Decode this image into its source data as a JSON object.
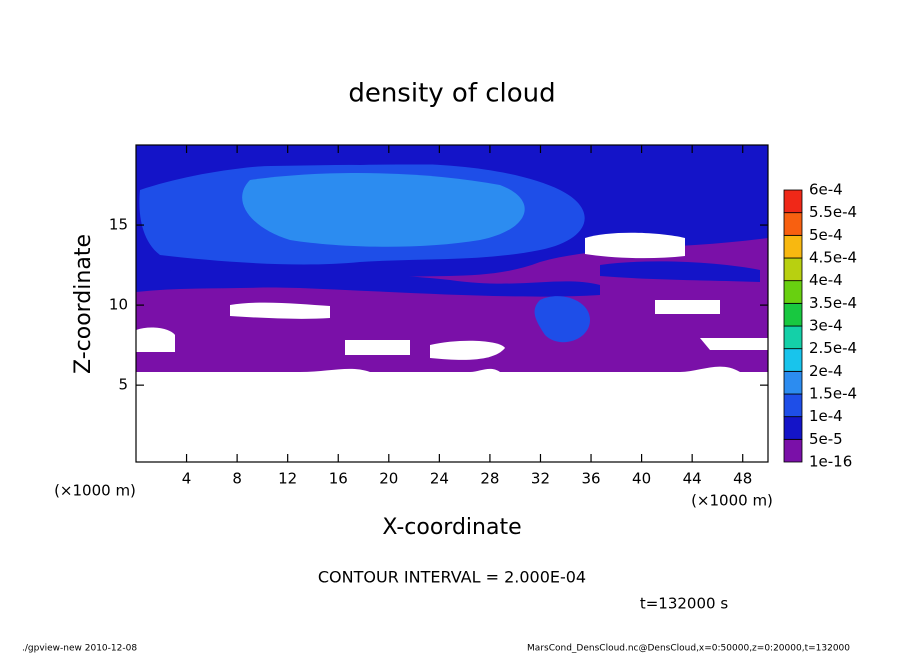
{
  "chart_data": {
    "type": "contour",
    "title": "density of cloud",
    "x_label": "X-coordinate",
    "y_label": "Z-coordinate",
    "x_unit": "(×1000 m)",
    "y_unit": "(×1000 m)",
    "xlim": [
      0,
      50
    ],
    "ylim": [
      0.2,
      20
    ],
    "xticks": [
      4,
      8,
      12,
      16,
      20,
      24,
      28,
      32,
      36,
      40,
      44,
      48
    ],
    "yticks": [
      5,
      10,
      15
    ],
    "levels": [
      {
        "value": 1e-16,
        "label": "1e-16"
      },
      {
        "value": 5e-05,
        "label": "5e-5"
      },
      {
        "value": 0.0001,
        "label": "1e-4"
      },
      {
        "value": 0.00015,
        "label": "1.5e-4"
      },
      {
        "value": 0.0002,
        "label": "2e-4"
      },
      {
        "value": 0.00025,
        "label": "2.5e-4"
      },
      {
        "value": 0.0003,
        "label": "3e-4"
      },
      {
        "value": 0.00035,
        "label": "3.5e-4"
      },
      {
        "value": 0.0004,
        "label": "4e-4"
      },
      {
        "value": 0.00045,
        "label": "4.5e-4"
      },
      {
        "value": 0.0005,
        "label": "5e-4"
      },
      {
        "value": 0.00055,
        "label": "5.5e-4"
      },
      {
        "value": 0.0006,
        "label": "6e-4"
      }
    ],
    "colors": [
      "#7a10a8",
      "#1414c8",
      "#1e4ee8",
      "#2c8cf0",
      "#18c4ec",
      "#14d0a8",
      "#18c840",
      "#68d010",
      "#b8d010",
      "#f8b810",
      "#f86010",
      "#f02818",
      "#f09090"
    ],
    "contour_interval": "CONTOUR INTERVAL = 2.000E-04",
    "time_label": "t=132000 s",
    "footer_left": "./gpview-new  2010-12-08",
    "footer_right": "MarsCond_DensCloud.nc@DensCloud,x=0:50000,z=0:20000,t=132000"
  }
}
